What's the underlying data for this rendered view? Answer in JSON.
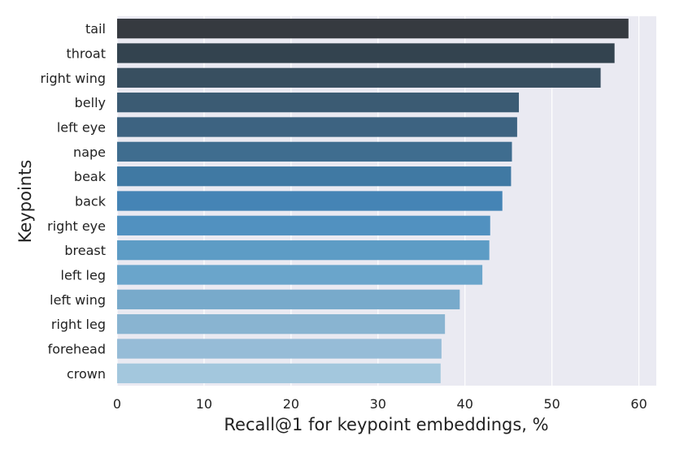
{
  "chart_data": {
    "type": "bar",
    "orientation": "horizontal",
    "title": "",
    "xlabel": "Recall@1 for keypoint embeddings, %",
    "ylabel": "Keypoints",
    "categories": [
      "tail",
      "throat",
      "right wing",
      "belly",
      "left eye",
      "nape",
      "beak",
      "back",
      "right eye",
      "breast",
      "left leg",
      "left wing",
      "right leg",
      "forehead",
      "crown"
    ],
    "values": [
      58.8,
      57.2,
      55.6,
      46.2,
      46.0,
      45.4,
      45.3,
      44.3,
      42.9,
      42.8,
      42.0,
      39.4,
      37.7,
      37.3,
      37.2
    ],
    "xlim": [
      0,
      62
    ],
    "xticks": [
      0,
      10,
      20,
      30,
      40,
      50,
      60
    ],
    "grid": true,
    "background": "#eaeaf2",
    "colors": [
      "#363a40",
      "#33434f",
      "#384f60",
      "#3b5b73",
      "#3d6381",
      "#3f6d8f",
      "#4079a3",
      "#4584b5",
      "#5191c0",
      "#5d9cc5",
      "#6aa5cb",
      "#78aacb",
      "#89b4d1",
      "#96bcd7",
      "#a3c7dd"
    ]
  }
}
